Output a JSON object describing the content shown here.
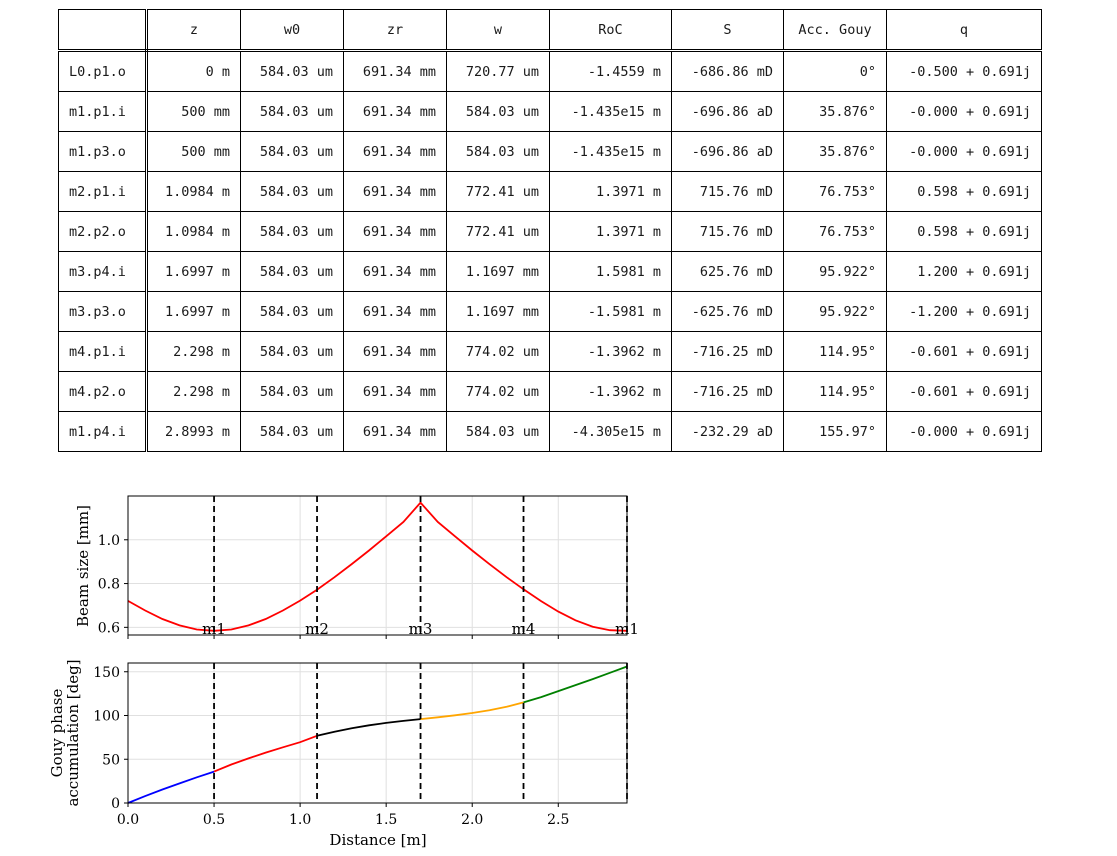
{
  "table": {
    "columns": [
      "",
      "z",
      "w0",
      "zr",
      "w",
      "RoC",
      "S",
      "Acc. Gouy",
      "q"
    ],
    "rows": [
      {
        "name": "L0.p1.o",
        "z": "0 m",
        "w0": "584.03 um",
        "zr": "691.34 mm",
        "w": "720.77 um",
        "roc": "-1.4559 m",
        "s": "-686.86 mD",
        "gouy": "0°",
        "q": "-0.500 + 0.691j"
      },
      {
        "name": "m1.p1.i",
        "z": "500 mm",
        "w0": "584.03 um",
        "zr": "691.34 mm",
        "w": "584.03 um",
        "roc": "-1.435e15 m",
        "s": "-696.86 aD",
        "gouy": "35.876°",
        "q": "-0.000 + 0.691j"
      },
      {
        "name": "m1.p3.o",
        "z": "500 mm",
        "w0": "584.03 um",
        "zr": "691.34 mm",
        "w": "584.03 um",
        "roc": "-1.435e15 m",
        "s": "-696.86 aD",
        "gouy": "35.876°",
        "q": "-0.000 + 0.691j"
      },
      {
        "name": "m2.p1.i",
        "z": "1.0984 m",
        "w0": "584.03 um",
        "zr": "691.34 mm",
        "w": "772.41 um",
        "roc": "1.3971 m",
        "s": "715.76 mD",
        "gouy": "76.753°",
        "q": "0.598 + 0.691j"
      },
      {
        "name": "m2.p2.o",
        "z": "1.0984 m",
        "w0": "584.03 um",
        "zr": "691.34 mm",
        "w": "772.41 um",
        "roc": "1.3971 m",
        "s": "715.76 mD",
        "gouy": "76.753°",
        "q": "0.598 + 0.691j"
      },
      {
        "name": "m3.p4.i",
        "z": "1.6997 m",
        "w0": "584.03 um",
        "zr": "691.34 mm",
        "w": "1.1697 mm",
        "roc": "1.5981 m",
        "s": "625.76 mD",
        "gouy": "95.922°",
        "q": "1.200 + 0.691j"
      },
      {
        "name": "m3.p3.o",
        "z": "1.6997 m",
        "w0": "584.03 um",
        "zr": "691.34 mm",
        "w": "1.1697 mm",
        "roc": "-1.5981 m",
        "s": "-625.76 mD",
        "gouy": "95.922°",
        "q": "-1.200 + 0.691j"
      },
      {
        "name": "m4.p1.i",
        "z": "2.298 m",
        "w0": "584.03 um",
        "zr": "691.34 mm",
        "w": "774.02 um",
        "roc": "-1.3962 m",
        "s": "-716.25 mD",
        "gouy": "114.95°",
        "q": "-0.601 + 0.691j"
      },
      {
        "name": "m4.p2.o",
        "z": "2.298 m",
        "w0": "584.03 um",
        "zr": "691.34 mm",
        "w": "774.02 um",
        "roc": "-1.3962 m",
        "s": "-716.25 mD",
        "gouy": "114.95°",
        "q": "-0.601 + 0.691j"
      },
      {
        "name": "m1.p4.i",
        "z": "2.8993 m",
        "w0": "584.03 um",
        "zr": "691.34 mm",
        "w": "584.03 um",
        "roc": "-4.305e15 m",
        "s": "-232.29 aD",
        "gouy": "155.97°",
        "q": "-0.000 + 0.691j"
      }
    ]
  },
  "chart_data": [
    {
      "type": "line",
      "ylabel": "Beam size [mm]",
      "xlim": [
        0,
        2.8993
      ],
      "ylim": [
        0.565,
        1.2
      ],
      "yticks": [
        "0.6",
        "0.8",
        "1.0"
      ],
      "grid": true,
      "component_markers": [
        {
          "label": "m1",
          "x": 0.5
        },
        {
          "label": "m2",
          "x": 1.0984
        },
        {
          "label": "m3",
          "x": 1.6997
        },
        {
          "label": "m4",
          "x": 2.298
        },
        {
          "label": "m1",
          "x": 2.8993
        }
      ],
      "series": [
        {
          "color": "#ff0000",
          "x": [
            0,
            0.1,
            0.2,
            0.3,
            0.4,
            0.5,
            0.6,
            0.7,
            0.8,
            0.9,
            1.0,
            1.0984,
            1.2,
            1.3,
            1.4,
            1.5,
            1.6,
            1.6997,
            1.8,
            1.9,
            2.0,
            2.1,
            2.2,
            2.298,
            2.4,
            2.5,
            2.6,
            2.7,
            2.8,
            2.8993
          ],
          "y": [
            0.721,
            0.677,
            0.638,
            0.609,
            0.59,
            0.584,
            0.59,
            0.609,
            0.638,
            0.677,
            0.722,
            0.772,
            0.829,
            0.889,
            0.951,
            1.016,
            1.081,
            1.17,
            1.081,
            1.016,
            0.951,
            0.889,
            0.829,
            0.774,
            0.72,
            0.672,
            0.632,
            0.603,
            0.587,
            0.584
          ]
        }
      ]
    },
    {
      "type": "line",
      "xlabel": "Distance [m]",
      "ylabel": "Gouy phase accumulation [deg]",
      "xlim": [
        0,
        2.8993
      ],
      "ylim": [
        0,
        160
      ],
      "xticks": [
        "0.0",
        "0.5",
        "1.0",
        "1.5",
        "2.0",
        "2.5"
      ],
      "yticks": [
        "0",
        "50",
        "100",
        "150"
      ],
      "grid": true,
      "component_markers": [
        0.5,
        1.0984,
        1.6997,
        2.298,
        2.8993
      ],
      "series": [
        {
          "color": "#0000ff",
          "x": [
            0,
            0.1,
            0.2,
            0.3,
            0.4,
            0.5
          ],
          "y": [
            0,
            7.9,
            15.4,
            22.4,
            29.4,
            35.88
          ]
        },
        {
          "color": "#ff0000",
          "x": [
            0.5,
            0.6,
            0.7,
            0.8,
            0.9,
            1.0,
            1.0984
          ],
          "y": [
            35.88,
            44.0,
            51.0,
            57.6,
            63.7,
            69.5,
            76.75
          ]
        },
        {
          "color": "#000000",
          "x": [
            1.0984,
            1.2,
            1.3,
            1.4,
            1.5,
            1.6,
            1.6997
          ],
          "y": [
            76.75,
            81.5,
            85.5,
            88.8,
            91.5,
            93.8,
            95.92
          ]
        },
        {
          "color": "#ffa500",
          "x": [
            1.6997,
            1.8,
            1.9,
            2.0,
            2.1,
            2.2,
            2.298
          ],
          "y": [
            95.92,
            98.0,
            100.2,
            102.8,
            105.9,
            109.9,
            114.95
          ]
        },
        {
          "color": "#008000",
          "x": [
            2.298,
            2.4,
            2.5,
            2.6,
            2.7,
            2.8,
            2.8993
          ],
          "y": [
            114.95,
            121.0,
            127.9,
            134.7,
            141.6,
            148.8,
            155.97
          ]
        }
      ]
    }
  ]
}
